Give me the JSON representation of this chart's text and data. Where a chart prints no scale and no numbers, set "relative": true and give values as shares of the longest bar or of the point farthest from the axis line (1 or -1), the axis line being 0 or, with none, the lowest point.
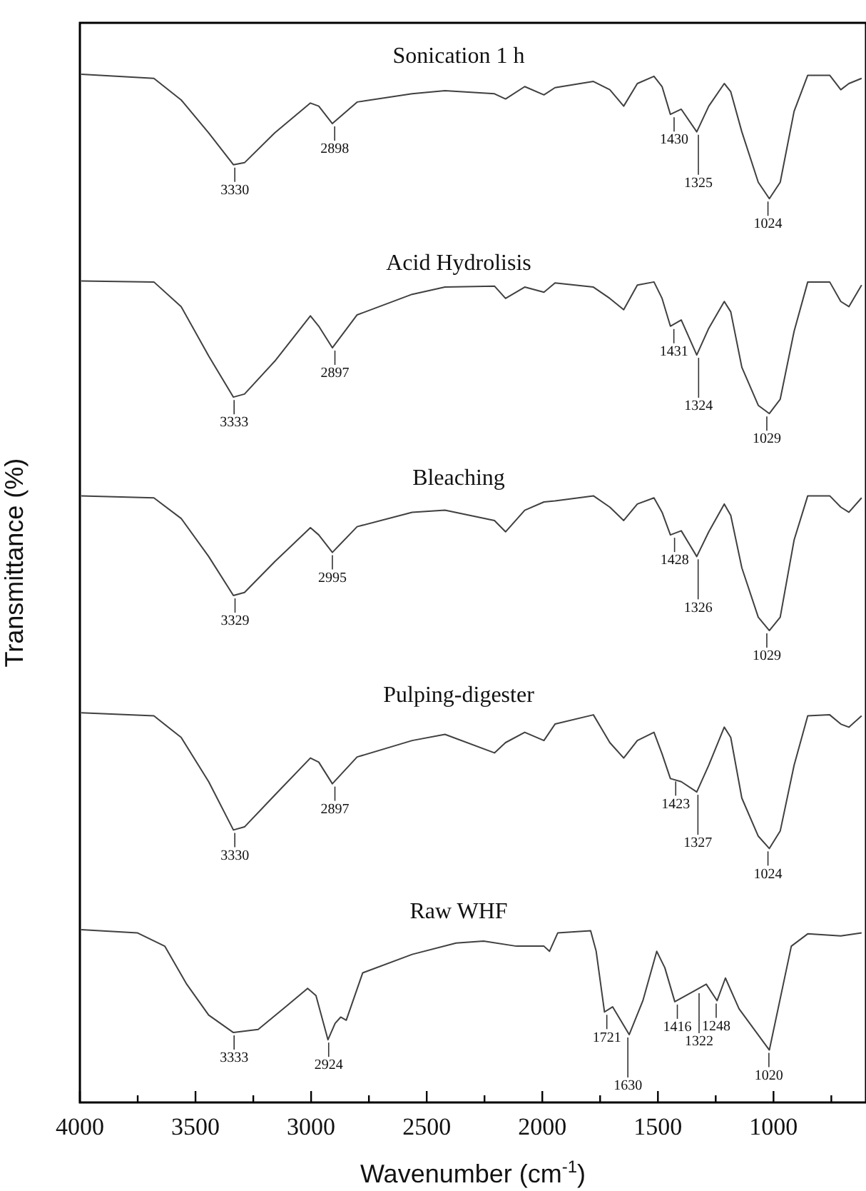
{
  "chart_data": {
    "type": "line",
    "relative": true,
    "xlabel": "Wavenumber (cm$^{-1}$)",
    "ylabel": "Transmittance (%)",
    "legend": false,
    "grid": false,
    "marker": "none",
    "line_style": "solid",
    "xlim": [
      4000,
      600
    ],
    "xticks": [
      4000,
      {
        "value": 3750,
        "label": null
      },
      3500,
      {
        "value": 3250,
        "label": null
      },
      3000,
      {
        "value": 2750,
        "label": null
      },
      2500,
      {
        "value": 2250,
        "label": null
      },
      2000,
      {
        "value": 1750,
        "label": null
      },
      1500,
      {
        "value": 1250,
        "label": null
      },
      1000,
      {
        "value": 750,
        "label": null
      }
    ],
    "x": [
      3994,
      3680,
      3562,
      3443,
      3336,
      3288,
      3157,
      3003,
      2967,
      2908,
      2801,
      2563,
      2421,
      2207,
      2159,
      2076,
      1993,
      1945,
      1779,
      1708,
      1648,
      1589,
      1517,
      1482,
      1446,
      1399,
      1332,
      1280,
      1213,
      1185,
      1137,
      1066,
      1018,
      971,
      911,
      852,
      757,
      709,
      674,
      619
    ],
    "series": [
      {
        "name": "Sonication 1 h",
        "color": "#404040",
        "values": [
          1.0,
          0.996,
          0.975,
          0.943,
          0.912,
          0.914,
          0.943,
          0.972,
          0.969,
          0.952,
          0.973,
          0.981,
          0.984,
          0.981,
          0.976,
          0.988,
          0.98,
          0.987,
          0.993,
          0.985,
          0.969,
          0.991,
          0.998,
          0.988,
          0.961,
          0.966,
          0.944,
          0.969,
          0.991,
          0.983,
          0.944,
          0.895,
          0.879,
          0.895,
          0.964,
          0.999,
          0.999,
          0.985,
          0.991,
          0.996
        ]
      },
      {
        "name": "Acid Hydrolisis",
        "color": "#404040",
        "values": [
          0.799,
          0.798,
          0.774,
          0.726,
          0.686,
          0.689,
          0.721,
          0.765,
          0.755,
          0.734,
          0.766,
          0.786,
          0.793,
          0.794,
          0.782,
          0.793,
          0.788,
          0.797,
          0.793,
          0.782,
          0.771,
          0.795,
          0.798,
          0.782,
          0.755,
          0.761,
          0.727,
          0.753,
          0.779,
          0.769,
          0.715,
          0.678,
          0.67,
          0.684,
          0.75,
          0.798,
          0.798,
          0.779,
          0.774,
          0.795
        ]
      },
      {
        "name": "Bleaching",
        "color": "#404040",
        "values": [
          0.59,
          0.588,
          0.568,
          0.531,
          0.493,
          0.496,
          0.526,
          0.559,
          0.552,
          0.535,
          0.56,
          0.574,
          0.576,
          0.566,
          0.555,
          0.576,
          0.584,
          0.585,
          0.59,
          0.579,
          0.566,
          0.582,
          0.588,
          0.574,
          0.552,
          0.556,
          0.531,
          0.555,
          0.582,
          0.571,
          0.52,
          0.472,
          0.459,
          0.472,
          0.547,
          0.59,
          0.59,
          0.579,
          0.574,
          0.588
        ]
      },
      {
        "name": "Pulping-digester",
        "color": "#404040",
        "values": [
          0.379,
          0.376,
          0.355,
          0.312,
          0.265,
          0.268,
          0.299,
          0.335,
          0.331,
          0.31,
          0.336,
          0.352,
          0.358,
          0.34,
          0.35,
          0.36,
          0.352,
          0.368,
          0.377,
          0.35,
          0.335,
          0.352,
          0.36,
          0.339,
          0.315,
          0.312,
          0.302,
          0.328,
          0.365,
          0.355,
          0.296,
          0.259,
          0.247,
          0.264,
          0.328,
          0.376,
          0.377,
          0.368,
          0.365,
          0.376
        ]
      },
      {
        "name": "Raw WHF",
        "color": "#404040",
        "x": [
          3994,
          3752,
          3633,
          3538,
          3443,
          3336,
          3229,
          3110,
          3015,
          2979,
          2927,
          2896,
          2872,
          2848,
          2777,
          2563,
          2373,
          2254,
          2112,
          1993,
          1969,
          1933,
          1791,
          1767,
          1731,
          1696,
          1624,
          1565,
          1505,
          1470,
          1427,
          1339,
          1291,
          1244,
          1208,
          1149,
          1018,
          923,
          852,
          709,
          619
        ],
        "values": [
          0.168,
          0.165,
          0.152,
          0.115,
          0.085,
          0.068,
          0.071,
          0.093,
          0.111,
          0.104,
          0.061,
          0.077,
          0.083,
          0.08,
          0.126,
          0.144,
          0.155,
          0.157,
          0.152,
          0.152,
          0.147,
          0.165,
          0.167,
          0.147,
          0.088,
          0.093,
          0.066,
          0.099,
          0.147,
          0.131,
          0.098,
          0.109,
          0.115,
          0.099,
          0.121,
          0.091,
          0.051,
          0.152,
          0.164,
          0.162,
          0.165
        ]
      }
    ],
    "annotations": [
      {
        "text": "3330",
        "x": 3330,
        "y": 0.912
      },
      {
        "text": "2898",
        "x": 2898,
        "y": 0.952
      },
      {
        "text": "1430",
        "x": 1430,
        "y": 0.961
      },
      {
        "text": "1325",
        "x": 1325,
        "y": 0.944
      },
      {
        "text": "1024",
        "x": 1024,
        "y": 0.879
      },
      {
        "text": "3333",
        "x": 3333,
        "y": 0.686
      },
      {
        "text": "2897",
        "x": 2897,
        "y": 0.734
      },
      {
        "text": "1431",
        "x": 1431,
        "y": 0.755
      },
      {
        "text": "1324",
        "x": 1324,
        "y": 0.727
      },
      {
        "text": "1029",
        "x": 1029,
        "y": 0.67
      },
      {
        "text": "3329",
        "x": 3329,
        "y": 0.493
      },
      {
        "text": "2995",
        "x": 2908,
        "y": 0.535
      },
      {
        "text": "1428",
        "x": 1428,
        "y": 0.552
      },
      {
        "text": "1326",
        "x": 1326,
        "y": 0.531
      },
      {
        "text": "1029",
        "x": 1029,
        "y": 0.459
      },
      {
        "text": "3330",
        "x": 3330,
        "y": 0.265
      },
      {
        "text": "2897",
        "x": 2897,
        "y": 0.31
      },
      {
        "text": "1423",
        "x": 1423,
        "y": 0.315
      },
      {
        "text": "1327",
        "x": 1327,
        "y": 0.302
      },
      {
        "text": "1024",
        "x": 1024,
        "y": 0.247
      },
      {
        "text": "3333",
        "x": 3333,
        "y": 0.068
      },
      {
        "text": "2924",
        "x": 2924,
        "y": 0.061
      },
      {
        "text": "1721",
        "x": 1721,
        "y": 0.088
      },
      {
        "text": "1630",
        "x": 1630,
        "y": 0.066
      },
      {
        "text": "1416",
        "x": 1416,
        "y": 0.098
      },
      {
        "text": "1322",
        "x": 1322,
        "y": 0.109
      },
      {
        "text": "1248",
        "x": 1248,
        "y": 0.099
      },
      {
        "text": "1020",
        "x": 1020,
        "y": 0.051
      }
    ]
  }
}
